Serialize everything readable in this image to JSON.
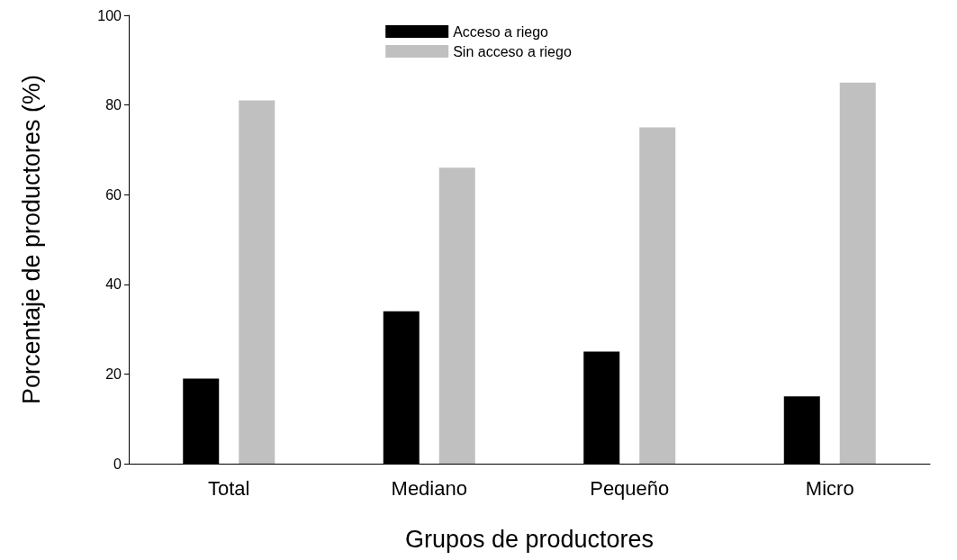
{
  "chart_data": {
    "type": "bar",
    "xlabel": "Grupos de productores",
    "ylabel": "Porcentaje de productores (%)",
    "categories": [
      "Total",
      "Mediano",
      "Pequeño",
      "Micro"
    ],
    "series": [
      {
        "name": "Acceso a riego",
        "color": "#000000",
        "values": [
          19,
          34,
          25,
          15
        ]
      },
      {
        "name": "Sin acceso a riego",
        "color": "#c0c0c0",
        "values": [
          81,
          66,
          75,
          85
        ]
      }
    ],
    "ylim": [
      0,
      100
    ],
    "yticks": [
      0,
      20,
      40,
      60,
      80,
      100
    ],
    "grid": false,
    "legend": "top"
  }
}
